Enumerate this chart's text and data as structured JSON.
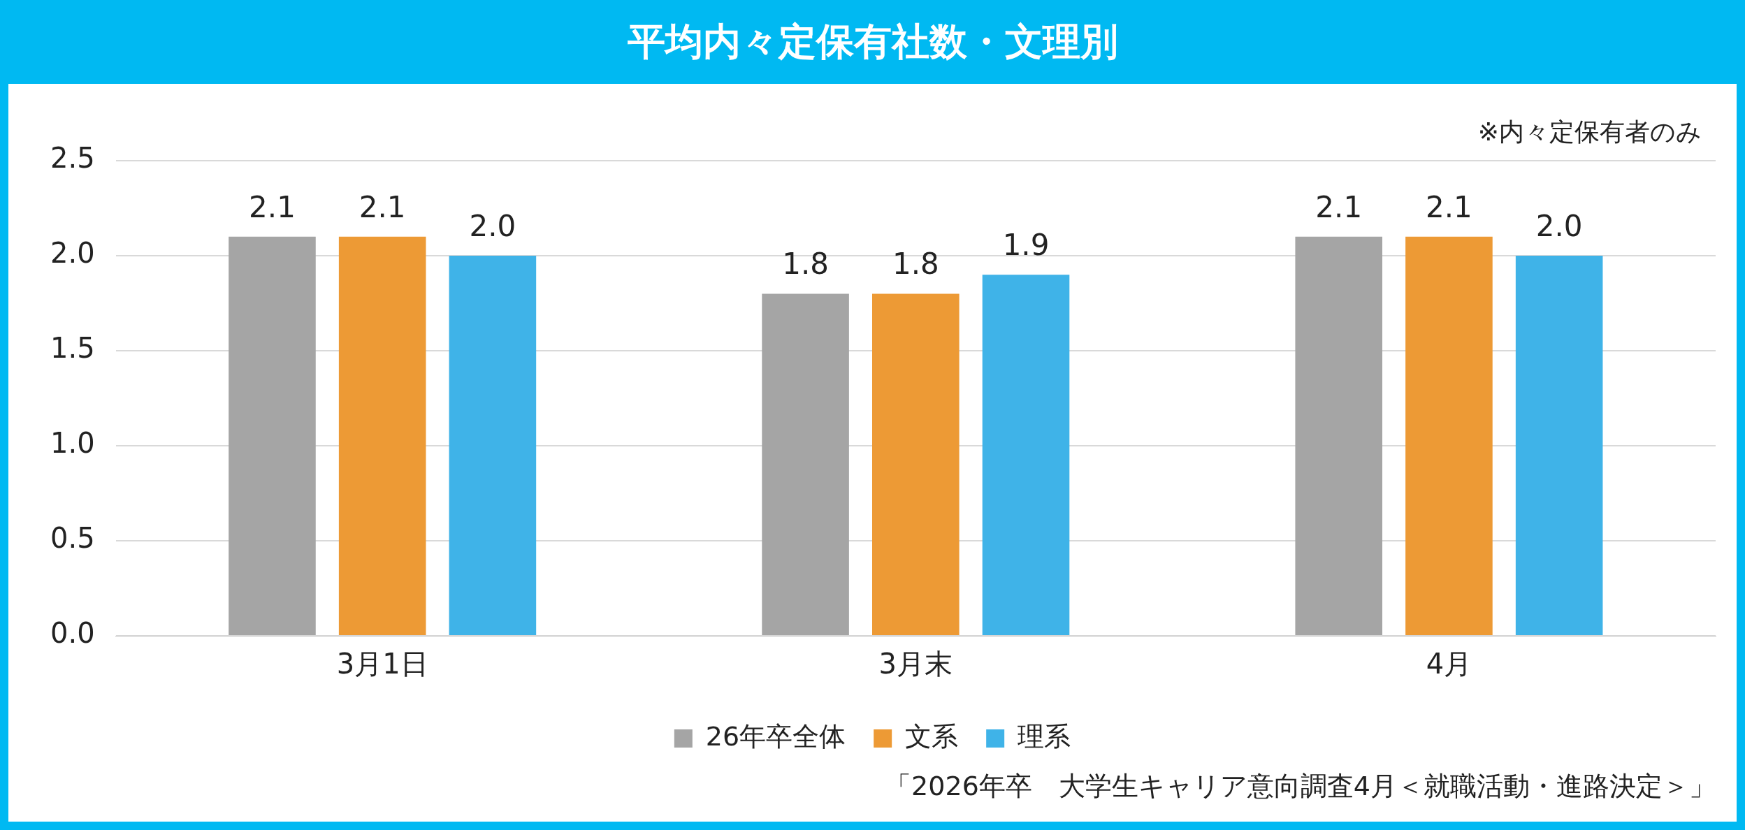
{
  "chart_data": {
    "type": "bar",
    "title": "平均内々定保有社数・文理別",
    "categories": [
      "3月1日",
      "3月末",
      "4月"
    ],
    "series": [
      {
        "name": "26年卒全体",
        "color": "#a5a5a5",
        "values": [
          2.1,
          1.8,
          2.1
        ],
        "value_labels": [
          "2.1",
          "1.8",
          "2.1"
        ]
      },
      {
        "name": "文系",
        "color": "#ed9a35",
        "values": [
          2.1,
          1.8,
          2.1
        ],
        "value_labels": [
          "2.1",
          "1.8",
          "2.1"
        ]
      },
      {
        "name": "理系",
        "color": "#3fb3e8",
        "values": [
          2.0,
          1.9,
          2.0
        ],
        "value_labels": [
          "2.0",
          "1.9",
          "2.0"
        ]
      }
    ],
    "ylim": [
      0,
      2.5
    ],
    "yticks": [
      {
        "value": 0,
        "label": "0.0"
      },
      {
        "value": 0.5,
        "label": "0.5"
      },
      {
        "value": 1,
        "label": "1.0"
      },
      {
        "value": 1.5,
        "label": "1.5"
      },
      {
        "value": 2,
        "label": "2.0"
      },
      {
        "value": 2.5,
        "label": "2.5"
      }
    ],
    "grid": "y",
    "legend": "bottom",
    "annotations": [
      "※内々定保有者のみ",
      "「2026年卒　大学生キャリア意向調査4月＜就職活動・進路決定＞」"
    ]
  }
}
